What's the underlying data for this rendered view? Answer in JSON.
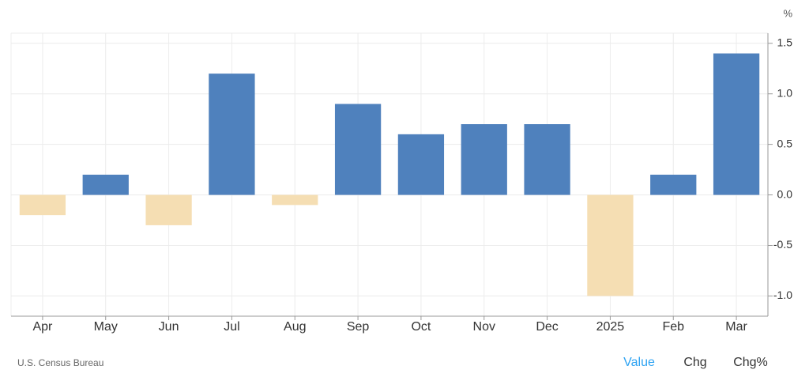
{
  "chart_data": {
    "type": "bar",
    "unit": "%",
    "source": "U.S. Census Bureau",
    "categories": [
      "Apr",
      "May",
      "Jun",
      "Jul",
      "Aug",
      "Sep",
      "Oct",
      "Nov",
      "Dec",
      "2025",
      "Feb",
      "Mar"
    ],
    "values": [
      -0.2,
      0.2,
      -0.3,
      1.2,
      -0.1,
      0.9,
      0.6,
      0.7,
      0.7,
      -1.0,
      0.2,
      1.4
    ],
    "positive_color": "#4f81bd",
    "negative_color": "#f5deb3",
    "ylim": [
      -1.2,
      1.6
    ],
    "yticks": [
      1.5,
      {
        "value": 1.0,
        "label": "1.0"
      },
      0.5,
      {
        "value": 0.0,
        "label": "0.0"
      },
      -0.5,
      {
        "value": -1.0,
        "label": "-1.0"
      }
    ],
    "grid": true,
    "buttons": [
      "Value",
      "Chg",
      "Chg%"
    ]
  }
}
